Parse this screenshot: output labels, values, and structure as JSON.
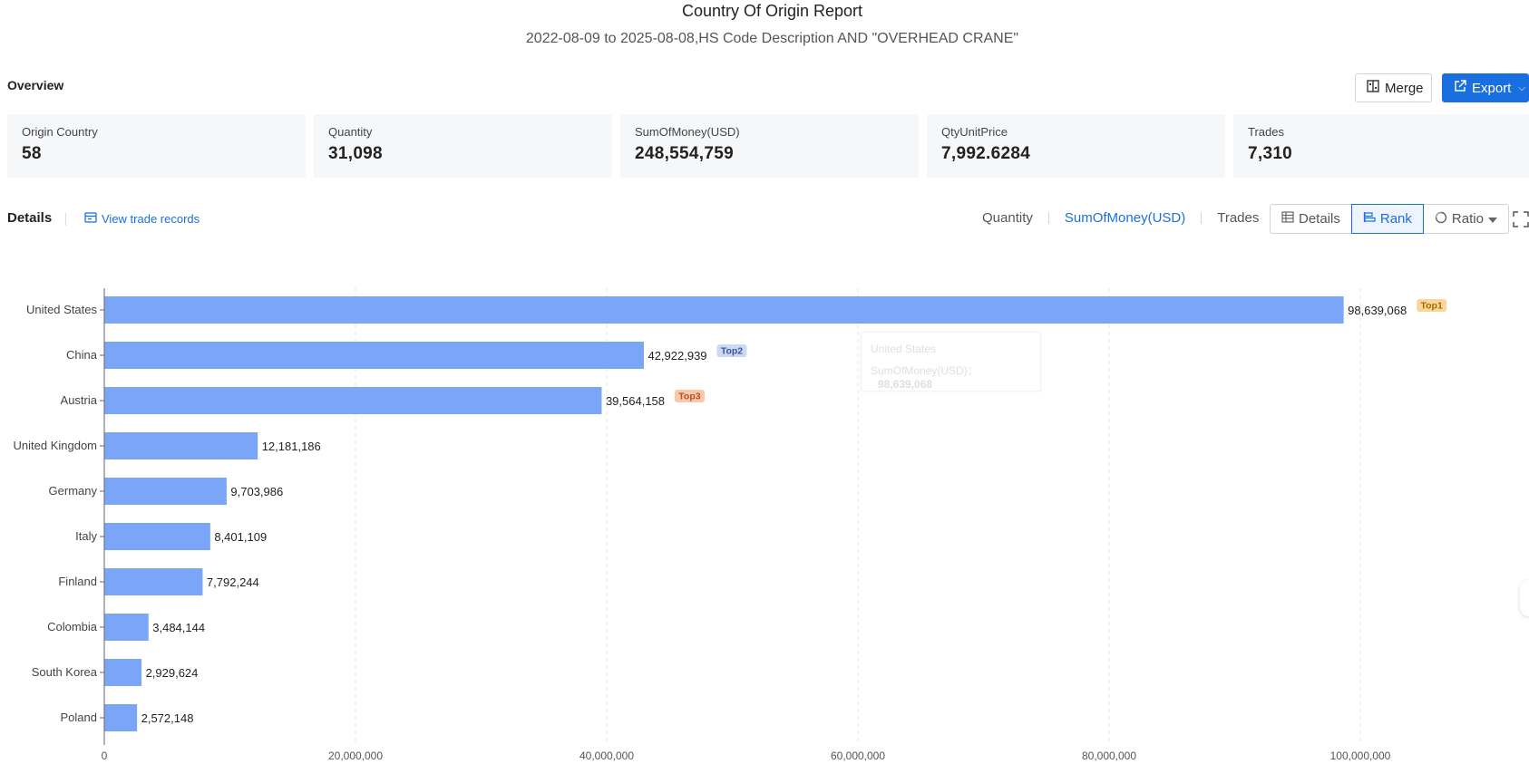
{
  "report": {
    "title": "Country Of Origin Report",
    "subtitle": "2022-08-09 to 2025-08-08,HS Code Description AND \"OVERHEAD CRANE\""
  },
  "overview": {
    "label": "Overview",
    "merge_label": "Merge",
    "export_label": "Export",
    "cards": [
      {
        "label": "Origin Country",
        "value": "58"
      },
      {
        "label": "Quantity",
        "value": "31,098"
      },
      {
        "label": "SumOfMoney(USD)",
        "value": "248,554,759"
      },
      {
        "label": "QtyUnitPrice",
        "value": "7,992.6284"
      },
      {
        "label": "Trades",
        "value": "7,310"
      }
    ]
  },
  "details": {
    "label": "Details",
    "view_trade_records": "View trade records",
    "metric_tabs": [
      "Quantity",
      "SumOfMoney(USD)",
      "Trades"
    ],
    "active_metric": "SumOfMoney(USD)",
    "view_modes": [
      "Details",
      "Rank",
      "Ratio"
    ],
    "active_view": "Rank"
  },
  "tooltip": {
    "country": "United States",
    "metric": "SumOfMoney(USD)：",
    "value": "98,639,068"
  },
  "colors": {
    "accent": "#1a6fe0",
    "bar": "#7ba6f8",
    "top1_badge": "#f8d89a",
    "top2_badge": "#cdd8f2",
    "top3_badge": "#f7c9a8"
  },
  "chart_data": {
    "type": "bar",
    "orientation": "horizontal",
    "categories": [
      "United States",
      "China",
      "Austria",
      "United Kingdom",
      "Germany",
      "Italy",
      "Finland",
      "Colombia",
      "South Korea",
      "Poland"
    ],
    "values": [
      98639068,
      42922939,
      39564158,
      12181186,
      9703986,
      8401109,
      7792244,
      3484144,
      2929624,
      2572148
    ],
    "value_labels": [
      "98,639,068",
      "42,922,939",
      "39,564,158",
      "12,181,186",
      "9,703,986",
      "8,401,109",
      "7,792,244",
      "3,484,144",
      "2,929,624",
      "2,572,148"
    ],
    "badges": [
      "Top1",
      "Top2",
      "Top3"
    ],
    "xlim": [
      0,
      100000000
    ],
    "xticks": [
      0,
      20000000,
      40000000,
      60000000,
      80000000,
      100000000
    ],
    "xtick_labels": [
      "0",
      "20,000,000",
      "40,000,000",
      "60,000,000",
      "80,000,000",
      "100,000,000"
    ],
    "grid": true
  }
}
